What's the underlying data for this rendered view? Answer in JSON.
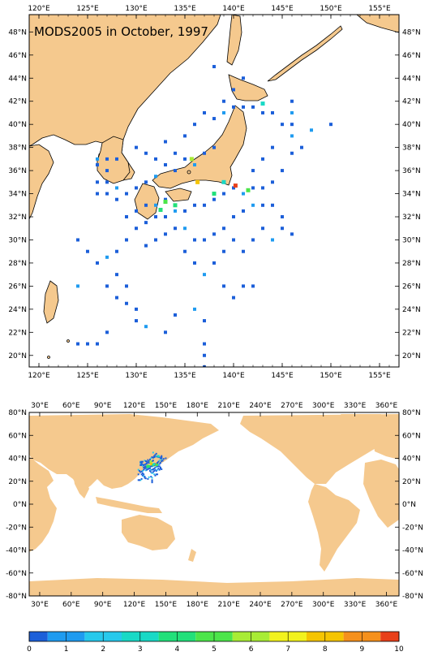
{
  "regional_map": {
    "title": "MODS2005 in October, 1997",
    "lon_labels": [
      "120°E",
      "125°E",
      "130°E",
      "135°E",
      "140°E",
      "145°E",
      "150°E",
      "155°E"
    ],
    "lat_labels": [
      "20°N",
      "22°N",
      "24°N",
      "26°N",
      "28°N",
      "30°N",
      "32°N",
      "34°N",
      "36°N",
      "38°N",
      "40°N",
      "42°N",
      "44°N",
      "46°N",
      "48°N"
    ],
    "lon_range": [
      119,
      157
    ],
    "lat_range": [
      19,
      49.5
    ]
  },
  "global_map": {
    "lon_labels": [
      "30°E",
      "60°E",
      "90°E",
      "120°E",
      "150°E",
      "180°E",
      "210°E",
      "240°E",
      "270°E",
      "300°E",
      "330°E",
      "360°E"
    ],
    "lat_labels": [
      "-80°N",
      "-60°N",
      "-40°N",
      "-20°N",
      "0°N",
      "20°N",
      "40°N",
      "60°N",
      "80°N"
    ],
    "lon_range": [
      20,
      372
    ],
    "lat_range": [
      -80,
      80
    ]
  },
  "colorbar": {
    "labels": [
      "0",
      "1",
      "2",
      "3",
      "4",
      "5",
      "6",
      "7",
      "8",
      "9",
      "10"
    ],
    "colors": [
      "#1c5fd9",
      "#1f9bf0",
      "#27c9ec",
      "#19d9c6",
      "#22e07a",
      "#4ce54a",
      "#a8ec35",
      "#f2f21d",
      "#f5c400",
      "#f5901c",
      "#e8401a"
    ]
  },
  "chart_data": {
    "type": "heatmap",
    "title": "MODS2005 in October, 1997",
    "color_range": [
      0,
      10
    ],
    "observations": [
      {
        "lon": 126,
        "lat": 37
      },
      {
        "lon": 127,
        "lat": 37
      },
      {
        "lon": 128,
        "lat": 37
      },
      {
        "lon": 126,
        "lat": 36.5
      },
      {
        "lon": 127,
        "lat": 36
      },
      {
        "lon": 126,
        "lat": 35
      },
      {
        "lon": 127,
        "lat": 35
      },
      {
        "lon": 128,
        "lat": 34.5
      },
      {
        "lon": 126,
        "lat": 34
      },
      {
        "lon": 127,
        "lat": 34
      },
      {
        "lon": 128,
        "lat": 33.5
      },
      {
        "lon": 129,
        "lat": 34
      },
      {
        "lon": 130,
        "lat": 34.5
      },
      {
        "lon": 131,
        "lat": 35
      },
      {
        "lon": 132,
        "lat": 35.5
      },
      {
        "lon": 130,
        "lat": 38
      },
      {
        "lon": 131,
        "lat": 37.5
      },
      {
        "lon": 132,
        "lat": 37
      },
      {
        "lon": 133,
        "lat": 36.5
      },
      {
        "lon": 134,
        "lat": 36
      },
      {
        "lon": 135,
        "lat": 37
      },
      {
        "lon": 136,
        "lat": 36.5
      },
      {
        "lon": 137,
        "lat": 37.5
      },
      {
        "lon": 138,
        "lat": 38
      },
      {
        "lon": 135,
        "lat": 39
      },
      {
        "lon": 136,
        "lat": 40
      },
      {
        "lon": 137,
        "lat": 41
      },
      {
        "lon": 138,
        "lat": 40.5
      },
      {
        "lon": 139,
        "lat": 41
      },
      {
        "lon": 140,
        "lat": 41.5
      },
      {
        "lon": 141,
        "lat": 41.5
      },
      {
        "lon": 142,
        "lat": 41.5
      },
      {
        "lon": 143,
        "lat": 41
      },
      {
        "lon": 144,
        "lat": 41
      },
      {
        "lon": 145,
        "lat": 40
      },
      {
        "lon": 146,
        "lat": 39
      },
      {
        "lon": 147,
        "lat": 38
      },
      {
        "lon": 146,
        "lat": 37.5
      },
      {
        "lon": 145,
        "lat": 36
      },
      {
        "lon": 144,
        "lat": 35
      },
      {
        "lon": 143,
        "lat": 34.5
      },
      {
        "lon": 142,
        "lat": 34.5
      },
      {
        "lon": 141,
        "lat": 34
      },
      {
        "lon": 140,
        "lat": 34.5
      },
      {
        "lon": 139,
        "lat": 34
      },
      {
        "lon": 138,
        "lat": 33.5
      },
      {
        "lon": 137,
        "lat": 33
      },
      {
        "lon": 136,
        "lat": 33
      },
      {
        "lon": 135,
        "lat": 32.5
      },
      {
        "lon": 134,
        "lat": 32.5
      },
      {
        "lon": 133,
        "lat": 32
      },
      {
        "lon": 132,
        "lat": 32
      },
      {
        "lon": 131,
        "lat": 31.5
      },
      {
        "lon": 130,
        "lat": 31
      },
      {
        "lon": 129,
        "lat": 30
      },
      {
        "lon": 128,
        "lat": 29
      },
      {
        "lon": 127,
        "lat": 28.5
      },
      {
        "lon": 126,
        "lat": 28
      },
      {
        "lon": 127,
        "lat": 26
      },
      {
        "lon": 128,
        "lat": 25
      },
      {
        "lon": 129,
        "lat": 24.5
      },
      {
        "lon": 130,
        "lat": 24
      },
      {
        "lon": 130,
        "lat": 23
      },
      {
        "lon": 131,
        "lat": 22.5
      },
      {
        "lon": 127,
        "lat": 22
      },
      {
        "lon": 126,
        "lat": 21
      },
      {
        "lon": 125,
        "lat": 21
      },
      {
        "lon": 124,
        "lat": 21
      },
      {
        "lon": 135,
        "lat": 29
      },
      {
        "lon": 136,
        "lat": 28
      },
      {
        "lon": 137,
        "lat": 27
      },
      {
        "lon": 138,
        "lat": 28
      },
      {
        "lon": 139,
        "lat": 29
      },
      {
        "lon": 140,
        "lat": 30
      },
      {
        "lon": 141,
        "lat": 29
      },
      {
        "lon": 142,
        "lat": 30
      },
      {
        "lon": 143,
        "lat": 31
      },
      {
        "lon": 144,
        "lat": 30
      },
      {
        "lon": 145,
        "lat": 31
      },
      {
        "lon": 146,
        "lat": 30.5
      },
      {
        "lon": 139,
        "lat": 26
      },
      {
        "lon": 140,
        "lat": 25
      },
      {
        "lon": 141,
        "lat": 26
      },
      {
        "lon": 142,
        "lat": 26
      },
      {
        "lon": 136,
        "lat": 24
      },
      {
        "lon": 137,
        "lat": 23
      },
      {
        "lon": 137,
        "lat": 21
      },
      {
        "lon": 137,
        "lat": 20
      },
      {
        "lon": 137,
        "lat": 19
      },
      {
        "lon": 133,
        "lat": 22
      },
      {
        "lon": 134,
        "lat": 23.5
      },
      {
        "lon": 148,
        "lat": 39.5
      },
      {
        "lon": 150,
        "lat": 40
      },
      {
        "lon": 139,
        "lat": 42
      },
      {
        "lon": 140,
        "lat": 43
      },
      {
        "lon": 138,
        "lat": 45
      },
      {
        "lon": 141,
        "lat": 44
      },
      {
        "lon": 146,
        "lat": 42
      },
      {
        "lon": 146,
        "lat": 41
      },
      {
        "lon": 146,
        "lat": 40
      },
      {
        "lon": 144,
        "lat": 38
      },
      {
        "lon": 143,
        "lat": 37
      },
      {
        "lon": 142,
        "lat": 36
      },
      {
        "lon": 134,
        "lat": 37.5
      },
      {
        "lon": 133,
        "lat": 38.5
      },
      {
        "lon": 132,
        "lat": 33
      },
      {
        "lon": 133,
        "lat": 33.5
      },
      {
        "lon": 131,
        "lat": 33
      },
      {
        "lon": 130,
        "lat": 32.5
      },
      {
        "lon": 129,
        "lat": 32
      },
      {
        "lon": 124,
        "lat": 30
      },
      {
        "lon": 125,
        "lat": 29
      },
      {
        "lon": 124,
        "lat": 26
      },
      {
        "lon": 128,
        "lat": 27
      },
      {
        "lon": 129,
        "lat": 26
      },
      {
        "lon": 131,
        "lat": 29.5
      },
      {
        "lon": 132,
        "lat": 30
      },
      {
        "lon": 133,
        "lat": 30.5
      },
      {
        "lon": 134,
        "lat": 31
      },
      {
        "lon": 135,
        "lat": 31
      },
      {
        "lon": 136,
        "lat": 30
      },
      {
        "lon": 137,
        "lat": 30
      },
      {
        "lon": 138,
        "lat": 30.5
      },
      {
        "lon": 139,
        "lat": 31
      },
      {
        "lon": 140,
        "lat": 32
      },
      {
        "lon": 141,
        "lat": 32.5
      },
      {
        "lon": 142,
        "lat": 33
      },
      {
        "lon": 143,
        "lat": 33
      },
      {
        "lon": 144,
        "lat": 33
      },
      {
        "lon": 145,
        "lat": 32
      }
    ],
    "hot_observations": [
      {
        "lon": 140.2,
        "lat": 34.7,
        "value": 10
      },
      {
        "lon": 135.7,
        "lat": 37.0,
        "value": 6
      },
      {
        "lon": 136.3,
        "lat": 35.0,
        "value": 8
      },
      {
        "lon": 133.0,
        "lat": 33.3,
        "value": 5
      },
      {
        "lon": 132.5,
        "lat": 32.6,
        "value": 4
      },
      {
        "lon": 141.5,
        "lat": 34.3,
        "value": 5
      },
      {
        "lon": 138.0,
        "lat": 34.0,
        "value": 4
      },
      {
        "lon": 143.0,
        "lat": 41.8,
        "value": 3
      },
      {
        "lon": 134.0,
        "lat": 33.0,
        "value": 4
      },
      {
        "lon": 139.0,
        "lat": 35.0,
        "value": 3
      }
    ]
  }
}
